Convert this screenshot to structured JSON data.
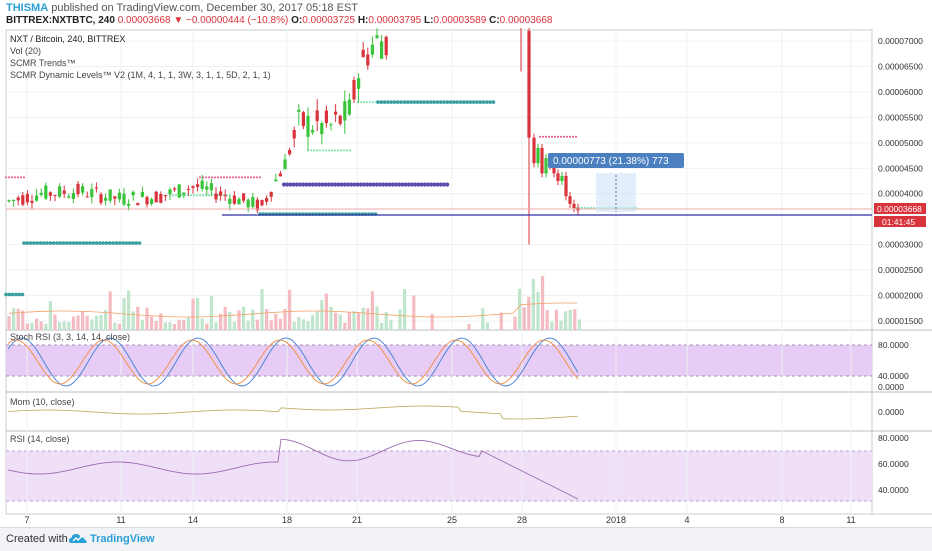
{
  "header": {
    "author": "THISMA",
    "published_text": "published on TradingView.com, December 30, 2017 05:18 EST",
    "symbol": "BITTREX:NXTBTC, 240",
    "last_price": "0.00003668",
    "change": "−0.00000444 (−10.8%)",
    "o_label": "O:",
    "o_value": "0.00003725",
    "h_label": "H:",
    "h_value": "0.00003795",
    "l_label": "L:",
    "l_value": "0.00003589",
    "c_label": "C:",
    "c_value": "0.00003668"
  },
  "legend": {
    "title": "NXT / Bitcoin, 240, BITTREX",
    "vol": "Vol (20)",
    "trends": "SCMR Trends™",
    "levels": "SCMR Dynamic Levels™ V2 (1M, 4, 1, 1, 3W, 3, 1, 1, 5D, 2, 1, 1)"
  },
  "measure_label": "0.00000773 (21.38%) 773",
  "price_badge": "0.00003668",
  "time_badge": "01:41:45",
  "price_axis_labels": [
    "0.00007000",
    "0.00006500",
    "0.00006000",
    "0.00005500",
    "0.00005000",
    "0.00004500",
    "0.00004000",
    "0.00003000",
    "0.00002500",
    "0.00002000",
    "0.00001500"
  ],
  "pane_titles": {
    "stoch": "Stoch RSI (3, 3, 14, 14, close)",
    "mom": "Mom (10, close)",
    "rsi": "RSI (14, close)"
  },
  "stoch_axis_labels": [
    "80.0000",
    "40.0000",
    "0.0000"
  ],
  "mom_axis_labels": [
    "0.0000"
  ],
  "rsi_axis_labels": [
    "80.0000",
    "60.0000",
    "40.0000"
  ],
  "x_axis_labels": [
    "7",
    "11",
    "14",
    "18",
    "21",
    "25",
    "28",
    "2018",
    "4",
    "8",
    "11"
  ],
  "footer": {
    "made_with": "Created with",
    "brand": "TradingView"
  },
  "colors": {
    "up": "#3ac43a",
    "down": "#d9333c",
    "stoch_band": "#e3c4f5",
    "rsi_band": "#efe0f7",
    "dyn_teal": "#3a9ea0",
    "dyn_purple": "#5a4fb0",
    "dyn_pink": "#ea4c8c",
    "accent": "#2a9fd6"
  },
  "chart_data": [
    {
      "type": "candlestick",
      "title": "NXT / Bitcoin, 240, BITTREX",
      "ylim": [
        1.3e-05,
        7.2e-05
      ],
      "x_ticks": [
        "7",
        "11",
        "14",
        "18",
        "21",
        "25",
        "28",
        "2018",
        "4",
        "8",
        "11"
      ],
      "series": [
        {
          "name": "Vol (20)",
          "type": "bar"
        }
      ]
    },
    {
      "type": "line",
      "title": "Stoch RSI (3, 3, 14, 14, close)",
      "ylim": [
        0,
        100
      ],
      "bands": [
        20,
        80
      ]
    },
    {
      "type": "line",
      "title": "Mom (10, close)"
    },
    {
      "type": "line",
      "title": "RSI (14, close)",
      "ylim": [
        25,
        85
      ],
      "bands": [
        30,
        70
      ]
    }
  ]
}
